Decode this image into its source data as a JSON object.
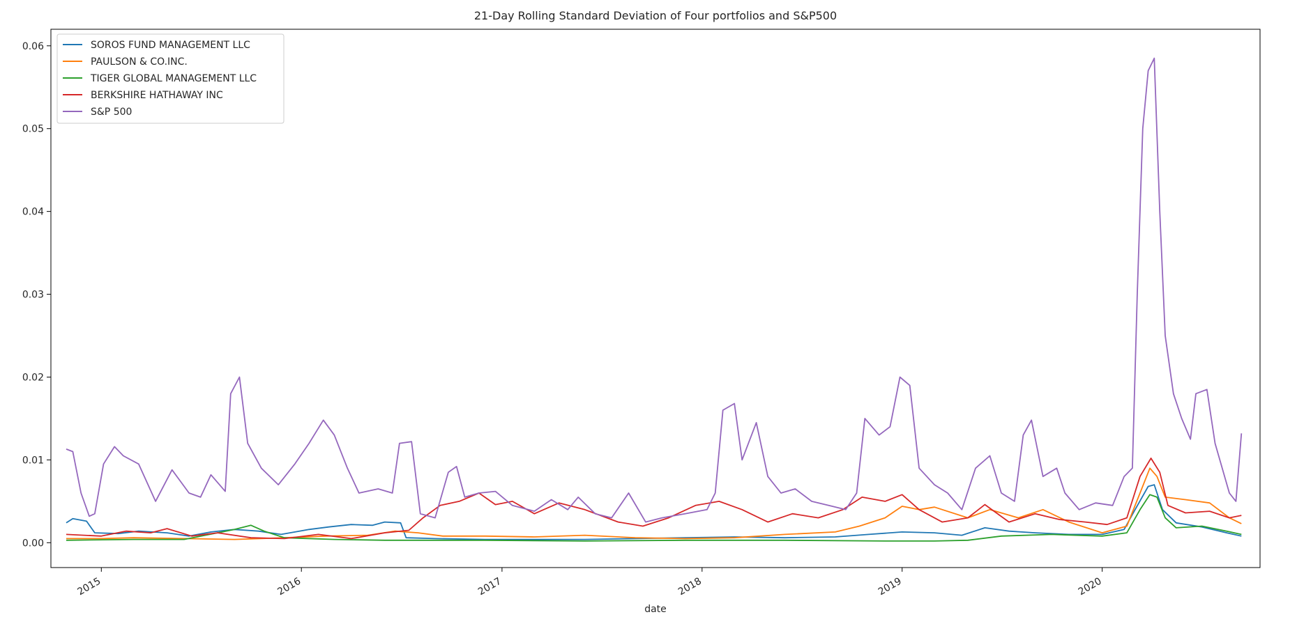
{
  "chart_data": {
    "type": "line",
    "title": "21-Day Rolling Standard Deviation of Four portfolios and S&P500",
    "xlabel": "date",
    "ylabel": "",
    "xlim": [
      "2014-10-01",
      "2020-10-15"
    ],
    "ylim": [
      -0.003,
      0.062
    ],
    "xticks": [
      "2015",
      "2016",
      "2017",
      "2018",
      "2019",
      "2020"
    ],
    "yticks": [
      "0.00",
      "0.01",
      "0.02",
      "0.03",
      "0.04",
      "0.05",
      "0.06"
    ],
    "legend_position": "upper-left",
    "grid": false,
    "series": [
      {
        "name": "SOROS FUND MANAGEMENT LLC",
        "color": "#1f77b4",
        "points": [
          [
            "2014-10-29",
            0.0024
          ],
          [
            "2014-11-10",
            0.0029
          ],
          [
            "2014-12-05",
            0.0026
          ],
          [
            "2014-12-20",
            0.0012
          ],
          [
            "2015-02-01",
            0.0011
          ],
          [
            "2015-03-10",
            0.0014
          ],
          [
            "2015-05-01",
            0.0012
          ],
          [
            "2015-06-10",
            0.0008
          ],
          [
            "2015-07-20",
            0.0013
          ],
          [
            "2015-09-01",
            0.0016
          ],
          [
            "2015-10-15",
            0.0014
          ],
          [
            "2015-11-25",
            0.001
          ],
          [
            "2016-01-15",
            0.0016
          ],
          [
            "2016-02-20",
            0.0019
          ],
          [
            "2016-04-01",
            0.0022
          ],
          [
            "2016-05-10",
            0.0021
          ],
          [
            "2016-06-01",
            0.0025
          ],
          [
            "2016-06-30",
            0.0024
          ],
          [
            "2016-07-10",
            0.0006
          ],
          [
            "2016-09-01",
            0.0005
          ],
          [
            "2016-12-01",
            0.0004
          ],
          [
            "2017-03-01",
            0.0004
          ],
          [
            "2017-06-01",
            0.0004
          ],
          [
            "2017-09-01",
            0.0005
          ],
          [
            "2017-12-01",
            0.0006
          ],
          [
            "2018-03-01",
            0.0007
          ],
          [
            "2018-06-01",
            0.0006
          ],
          [
            "2018-09-01",
            0.0007
          ],
          [
            "2018-11-01",
            0.001
          ],
          [
            "2019-01-01",
            0.0013
          ],
          [
            "2019-03-01",
            0.0012
          ],
          [
            "2019-04-20",
            0.0009
          ],
          [
            "2019-06-01",
            0.0018
          ],
          [
            "2019-07-15",
            0.0014
          ],
          [
            "2019-09-01",
            0.0012
          ],
          [
            "2019-11-01",
            0.001
          ],
          [
            "2020-01-01",
            0.001
          ],
          [
            "2020-02-10",
            0.0016
          ],
          [
            "2020-03-01",
            0.004
          ],
          [
            "2020-03-25",
            0.0068
          ],
          [
            "2020-04-05",
            0.007
          ],
          [
            "2020-04-20",
            0.004
          ],
          [
            "2020-05-15",
            0.0024
          ],
          [
            "2020-07-01",
            0.0019
          ],
          [
            "2020-08-15",
            0.0012
          ],
          [
            "2020-09-11",
            0.0008
          ]
        ]
      },
      {
        "name": "PAULSON & CO.INC.",
        "color": "#ff7f0e",
        "points": [
          [
            "2014-10-29",
            0.0005
          ],
          [
            "2015-01-01",
            0.0005
          ],
          [
            "2015-03-01",
            0.0006
          ],
          [
            "2015-06-01",
            0.0005
          ],
          [
            "2015-09-01",
            0.0004
          ],
          [
            "2015-12-01",
            0.0006
          ],
          [
            "2016-02-15",
            0.0008
          ],
          [
            "2016-05-01",
            0.0009
          ],
          [
            "2016-06-20",
            0.0014
          ],
          [
            "2016-08-01",
            0.0012
          ],
          [
            "2016-09-15",
            0.0008
          ],
          [
            "2016-12-01",
            0.0008
          ],
          [
            "2017-03-01",
            0.0007
          ],
          [
            "2017-06-01",
            0.0009
          ],
          [
            "2017-09-01",
            0.0006
          ],
          [
            "2017-12-01",
            0.0005
          ],
          [
            "2018-03-01",
            0.0006
          ],
          [
            "2018-06-01",
            0.001
          ],
          [
            "2018-09-01",
            0.0013
          ],
          [
            "2018-10-15",
            0.002
          ],
          [
            "2018-12-01",
            0.003
          ],
          [
            "2019-01-01",
            0.0044
          ],
          [
            "2019-02-01",
            0.004
          ],
          [
            "2019-03-01",
            0.0043
          ],
          [
            "2019-05-01",
            0.003
          ],
          [
            "2019-06-10",
            0.004
          ],
          [
            "2019-08-01",
            0.003
          ],
          [
            "2019-09-15",
            0.004
          ],
          [
            "2019-11-01",
            0.0025
          ],
          [
            "2020-01-01",
            0.0012
          ],
          [
            "2020-02-15",
            0.002
          ],
          [
            "2020-03-10",
            0.006
          ],
          [
            "2020-03-28",
            0.009
          ],
          [
            "2020-04-10",
            0.008
          ],
          [
            "2020-04-25",
            0.0055
          ],
          [
            "2020-06-01",
            0.0052
          ],
          [
            "2020-07-15",
            0.0048
          ],
          [
            "2020-08-20",
            0.003
          ],
          [
            "2020-09-11",
            0.0023
          ]
        ]
      },
      {
        "name": "TIGER GLOBAL MANAGEMENT LLC",
        "color": "#2ca02c",
        "points": [
          [
            "2014-10-29",
            0.0003
          ],
          [
            "2015-03-01",
            0.0004
          ],
          [
            "2015-06-01",
            0.0004
          ],
          [
            "2015-08-01",
            0.0012
          ],
          [
            "2015-09-01",
            0.0016
          ],
          [
            "2015-10-01",
            0.0021
          ],
          [
            "2015-10-25",
            0.0014
          ],
          [
            "2015-12-01",
            0.0006
          ],
          [
            "2016-03-01",
            0.0004
          ],
          [
            "2016-06-01",
            0.0003
          ],
          [
            "2016-12-01",
            0.0003
          ],
          [
            "2017-06-01",
            0.0002
          ],
          [
            "2017-12-01",
            0.0003
          ],
          [
            "2018-06-01",
            0.0003
          ],
          [
            "2018-12-01",
            0.0002
          ],
          [
            "2019-03-01",
            0.0002
          ],
          [
            "2019-05-01",
            0.0003
          ],
          [
            "2019-07-01",
            0.0008
          ],
          [
            "2019-10-01",
            0.001
          ],
          [
            "2020-01-01",
            0.0008
          ],
          [
            "2020-02-15",
            0.0012
          ],
          [
            "2020-03-10",
            0.004
          ],
          [
            "2020-03-28",
            0.0058
          ],
          [
            "2020-04-10",
            0.0055
          ],
          [
            "2020-04-25",
            0.003
          ],
          [
            "2020-05-15",
            0.0018
          ],
          [
            "2020-07-01",
            0.002
          ],
          [
            "2020-08-15",
            0.0014
          ],
          [
            "2020-09-11",
            0.001
          ]
        ]
      },
      {
        "name": "BERKSHIRE HATHAWAY INC",
        "color": "#d62728",
        "points": [
          [
            "2014-10-29",
            0.001
          ],
          [
            "2015-01-01",
            0.0008
          ],
          [
            "2015-02-15",
            0.0014
          ],
          [
            "2015-04-01",
            0.0012
          ],
          [
            "2015-05-01",
            0.0017
          ],
          [
            "2015-06-15",
            0.0008
          ],
          [
            "2015-08-01",
            0.0012
          ],
          [
            "2015-10-01",
            0.0006
          ],
          [
            "2015-12-01",
            0.0005
          ],
          [
            "2016-02-01",
            0.001
          ],
          [
            "2016-04-01",
            0.0005
          ],
          [
            "2016-06-01",
            0.0012
          ],
          [
            "2016-07-15",
            0.0015
          ],
          [
            "2016-08-10",
            0.003
          ],
          [
            "2016-09-10",
            0.0045
          ],
          [
            "2016-10-15",
            0.005
          ],
          [
            "2016-11-20",
            0.006
          ],
          [
            "2016-12-20",
            0.0046
          ],
          [
            "2017-01-20",
            0.005
          ],
          [
            "2017-03-01",
            0.0035
          ],
          [
            "2017-04-15",
            0.0048
          ],
          [
            "2017-06-01",
            0.004
          ],
          [
            "2017-08-01",
            0.0025
          ],
          [
            "2017-09-15",
            0.002
          ],
          [
            "2017-11-01",
            0.003
          ],
          [
            "2017-12-20",
            0.0045
          ],
          [
            "2018-02-01",
            0.005
          ],
          [
            "2018-03-15",
            0.004
          ],
          [
            "2018-05-01",
            0.0025
          ],
          [
            "2018-06-15",
            0.0035
          ],
          [
            "2018-08-01",
            0.003
          ],
          [
            "2018-09-15",
            0.004
          ],
          [
            "2018-10-20",
            0.0055
          ],
          [
            "2018-12-01",
            0.005
          ],
          [
            "2019-01-01",
            0.0058
          ],
          [
            "2019-02-01",
            0.004
          ],
          [
            "2019-03-15",
            0.0025
          ],
          [
            "2019-05-01",
            0.003
          ],
          [
            "2019-06-01",
            0.0046
          ],
          [
            "2019-07-15",
            0.0025
          ],
          [
            "2019-09-01",
            0.0035
          ],
          [
            "2019-10-15",
            0.0028
          ],
          [
            "2019-12-01",
            0.0025
          ],
          [
            "2020-01-10",
            0.0022
          ],
          [
            "2020-02-15",
            0.003
          ],
          [
            "2020-03-10",
            0.008
          ],
          [
            "2020-03-30",
            0.0102
          ],
          [
            "2020-04-15",
            0.0085
          ],
          [
            "2020-04-30",
            0.0045
          ],
          [
            "2020-06-01",
            0.0036
          ],
          [
            "2020-07-15",
            0.0038
          ],
          [
            "2020-08-20",
            0.003
          ],
          [
            "2020-09-11",
            0.0033
          ]
        ]
      },
      {
        "name": "S&P 500",
        "color": "#9467bd",
        "points": [
          [
            "2014-10-29",
            0.0113
          ],
          [
            "2014-11-10",
            0.011
          ],
          [
            "2014-11-25",
            0.006
          ],
          [
            "2014-12-10",
            0.0032
          ],
          [
            "2014-12-20",
            0.0035
          ],
          [
            "2015-01-05",
            0.0095
          ],
          [
            "2015-01-25",
            0.0116
          ],
          [
            "2015-02-10",
            0.0105
          ],
          [
            "2015-03-10",
            0.0095
          ],
          [
            "2015-04-10",
            0.005
          ],
          [
            "2015-05-10",
            0.0088
          ],
          [
            "2015-06-10",
            0.006
          ],
          [
            "2015-07-01",
            0.0055
          ],
          [
            "2015-07-20",
            0.0082
          ],
          [
            "2015-08-15",
            0.0062
          ],
          [
            "2015-08-25",
            0.018
          ],
          [
            "2015-09-10",
            0.02
          ],
          [
            "2015-09-25",
            0.012
          ],
          [
            "2015-10-20",
            0.009
          ],
          [
            "2015-11-20",
            0.007
          ],
          [
            "2015-12-20",
            0.0095
          ],
          [
            "2016-01-15",
            0.012
          ],
          [
            "2016-02-10",
            0.0148
          ],
          [
            "2016-03-01",
            0.013
          ],
          [
            "2016-03-25",
            0.009
          ],
          [
            "2016-04-15",
            0.006
          ],
          [
            "2016-05-20",
            0.0065
          ],
          [
            "2016-06-15",
            0.006
          ],
          [
            "2016-06-28",
            0.012
          ],
          [
            "2016-07-20",
            0.0122
          ],
          [
            "2016-08-05",
            0.0035
          ],
          [
            "2016-09-01",
            0.003
          ],
          [
            "2016-09-25",
            0.0085
          ],
          [
            "2016-10-10",
            0.0092
          ],
          [
            "2016-10-25",
            0.0055
          ],
          [
            "2016-11-20",
            0.006
          ],
          [
            "2016-12-20",
            0.0062
          ],
          [
            "2017-01-20",
            0.0045
          ],
          [
            "2017-03-01",
            0.0038
          ],
          [
            "2017-04-01",
            0.0052
          ],
          [
            "2017-05-01",
            0.004
          ],
          [
            "2017-05-20",
            0.0055
          ],
          [
            "2017-06-20",
            0.0035
          ],
          [
            "2017-07-20",
            0.003
          ],
          [
            "2017-08-20",
            0.006
          ],
          [
            "2017-09-20",
            0.0025
          ],
          [
            "2017-10-20",
            0.003
          ],
          [
            "2017-12-01",
            0.0035
          ],
          [
            "2018-01-10",
            0.004
          ],
          [
            "2018-01-25",
            0.006
          ],
          [
            "2018-02-08",
            0.016
          ],
          [
            "2018-03-01",
            0.0168
          ],
          [
            "2018-03-15",
            0.01
          ],
          [
            "2018-04-10",
            0.0145
          ],
          [
            "2018-05-01",
            0.008
          ],
          [
            "2018-05-25",
            0.006
          ],
          [
            "2018-06-20",
            0.0065
          ],
          [
            "2018-07-20",
            0.005
          ],
          [
            "2018-08-20",
            0.0045
          ],
          [
            "2018-09-20",
            0.004
          ],
          [
            "2018-10-10",
            0.006
          ],
          [
            "2018-10-25",
            0.015
          ],
          [
            "2018-11-20",
            0.013
          ],
          [
            "2018-12-10",
            0.014
          ],
          [
            "2018-12-28",
            0.02
          ],
          [
            "2019-01-15",
            0.019
          ],
          [
            "2019-02-01",
            0.009
          ],
          [
            "2019-03-01",
            0.007
          ],
          [
            "2019-03-25",
            0.006
          ],
          [
            "2019-04-20",
            0.004
          ],
          [
            "2019-05-15",
            0.009
          ],
          [
            "2019-06-10",
            0.0105
          ],
          [
            "2019-07-01",
            0.006
          ],
          [
            "2019-07-25",
            0.005
          ],
          [
            "2019-08-10",
            0.013
          ],
          [
            "2019-08-25",
            0.0148
          ],
          [
            "2019-09-15",
            0.008
          ],
          [
            "2019-10-10",
            0.009
          ],
          [
            "2019-10-25",
            0.006
          ],
          [
            "2019-11-20",
            0.004
          ],
          [
            "2019-12-20",
            0.0048
          ],
          [
            "2020-01-20",
            0.0045
          ],
          [
            "2020-02-10",
            0.008
          ],
          [
            "2020-02-25",
            0.009
          ],
          [
            "2020-03-05",
            0.03
          ],
          [
            "2020-03-15",
            0.05
          ],
          [
            "2020-03-25",
            0.057
          ],
          [
            "2020-04-05",
            0.0585
          ],
          [
            "2020-04-15",
            0.04
          ],
          [
            "2020-04-25",
            0.025
          ],
          [
            "2020-05-10",
            0.018
          ],
          [
            "2020-05-25",
            0.015
          ],
          [
            "2020-06-10",
            0.0125
          ],
          [
            "2020-06-20",
            0.018
          ],
          [
            "2020-07-10",
            0.0185
          ],
          [
            "2020-07-25",
            0.012
          ],
          [
            "2020-08-20",
            0.006
          ],
          [
            "2020-09-01",
            0.005
          ],
          [
            "2020-09-11",
            0.0132
          ]
        ]
      }
    ]
  }
}
